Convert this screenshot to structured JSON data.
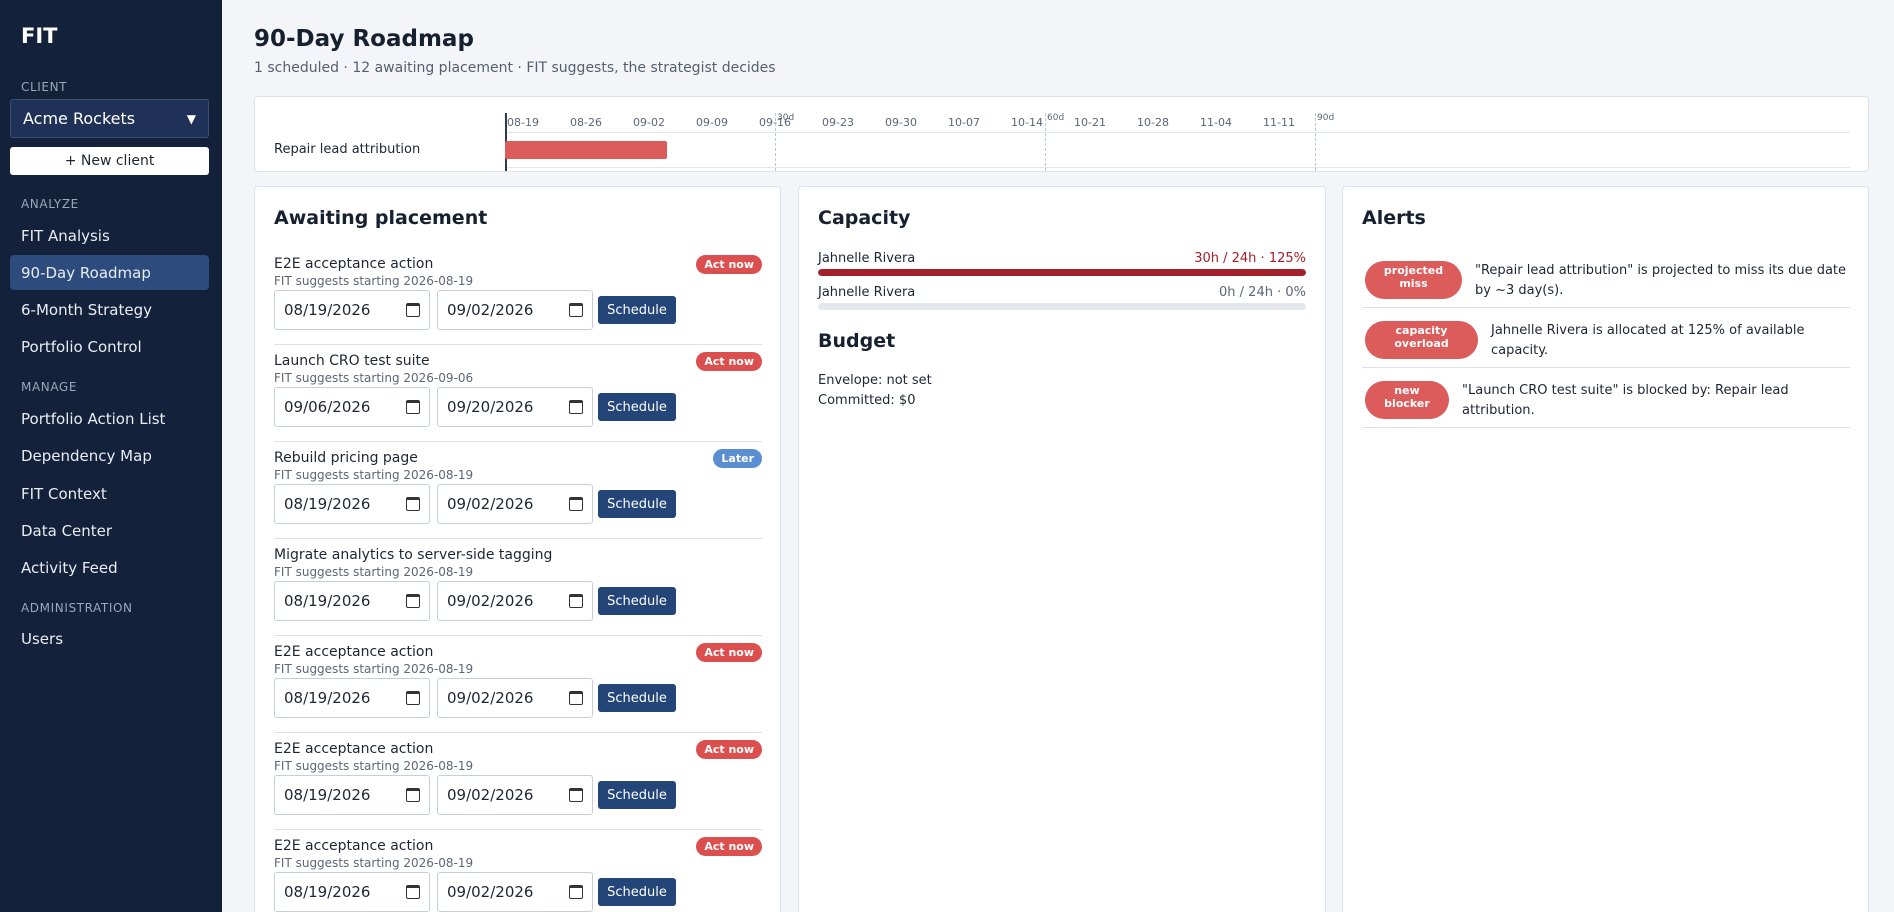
{
  "app": {
    "brand": "FIT"
  },
  "sidebar": {
    "client_label": "CLIENT",
    "client_value": "Acme Rockets",
    "new_client": "+ New client",
    "analyze_label": "ANALYZE",
    "manage_label": "MANAGE",
    "admin_label": "ADMINISTRATION",
    "items": [
      {
        "label": "FIT Analysis"
      },
      {
        "label": "90-Day Roadmap"
      },
      {
        "label": "6-Month Strategy"
      },
      {
        "label": "Portfolio Control"
      },
      {
        "label": "Portfolio Action List"
      },
      {
        "label": "Dependency Map"
      },
      {
        "label": "FIT Context"
      },
      {
        "label": "Data Center"
      },
      {
        "label": "Activity Feed"
      },
      {
        "label": "Users"
      }
    ]
  },
  "header": {
    "title": "90-Day Roadmap",
    "subtitle": "1 scheduled · 12 awaiting placement · FIT suggests, the strategist decides"
  },
  "timeline": {
    "ticks": [
      "08-19",
      "08-26",
      "09-02",
      "09-09",
      "09-16",
      "09-23",
      "09-30",
      "10-07",
      "10-14",
      "10-21",
      "10-28",
      "11-04",
      "11-11"
    ],
    "markers": [
      "30d",
      "60d",
      "90d"
    ],
    "rows": [
      {
        "label": "Repair lead attribution",
        "start_day": 0,
        "duration_days": 18
      }
    ]
  },
  "awaiting": {
    "title": "Awaiting placement",
    "schedule_label": "Schedule",
    "items": [
      {
        "name": "E2E acceptance action",
        "suggestion": "FIT suggests starting 2026-08-19",
        "badge": "Act now",
        "start": "08/19/2026",
        "end": "09/02/2026"
      },
      {
        "name": "Launch CRO test suite",
        "suggestion": "FIT suggests starting 2026-09-06",
        "badge": "Act now",
        "start": "09/06/2026",
        "end": "09/20/2026"
      },
      {
        "name": "Rebuild pricing page",
        "suggestion": "FIT suggests starting 2026-08-19",
        "badge": "Later",
        "start": "08/19/2026",
        "end": "09/02/2026"
      },
      {
        "name": "Migrate analytics to server-side tagging",
        "suggestion": "FIT suggests starting 2026-08-19",
        "badge": "",
        "start": "08/19/2026",
        "end": "09/02/2026"
      },
      {
        "name": "E2E acceptance action",
        "suggestion": "FIT suggests starting 2026-08-19",
        "badge": "Act now",
        "start": "08/19/2026",
        "end": "09/02/2026"
      },
      {
        "name": "E2E acceptance action",
        "suggestion": "FIT suggests starting 2026-08-19",
        "badge": "Act now",
        "start": "08/19/2026",
        "end": "09/02/2026"
      },
      {
        "name": "E2E acceptance action",
        "suggestion": "FIT suggests starting 2026-08-19",
        "badge": "Act now",
        "start": "08/19/2026",
        "end": "09/02/2026"
      }
    ]
  },
  "capacity": {
    "title": "Capacity",
    "rows": [
      {
        "name": "Jahnelle Rivera",
        "value": "30h / 24h · 125%",
        "utilization": 1.25,
        "color": "#a3202a"
      },
      {
        "name": "Jahnelle Rivera",
        "value": "0h / 24h · 0%",
        "utilization": 0,
        "color": "#5c6675"
      }
    ]
  },
  "budget": {
    "title": "Budget",
    "envelope": "Envelope: not set",
    "committed": "Committed: $0"
  },
  "alerts": {
    "title": "Alerts",
    "items": [
      {
        "tag": "projected miss",
        "text_1": "\"Repair lead attribution\" is projected to miss its due date",
        "text_2": "by ~3 day(s)."
      },
      {
        "tag": "capacity overload",
        "text_1": "Jahnelle Rivera is allocated at 125% of available",
        "text_2": "capacity."
      },
      {
        "tag": "new blocker",
        "text_1": "\"Launch CRO test suite\" is blocked by: Repair lead",
        "text_2": "attribution."
      }
    ]
  },
  "colors": {
    "sidebar_bg": "#14213a",
    "accent": "#234578",
    "danger": "#db4f4f",
    "info": "#5b8ed1"
  }
}
